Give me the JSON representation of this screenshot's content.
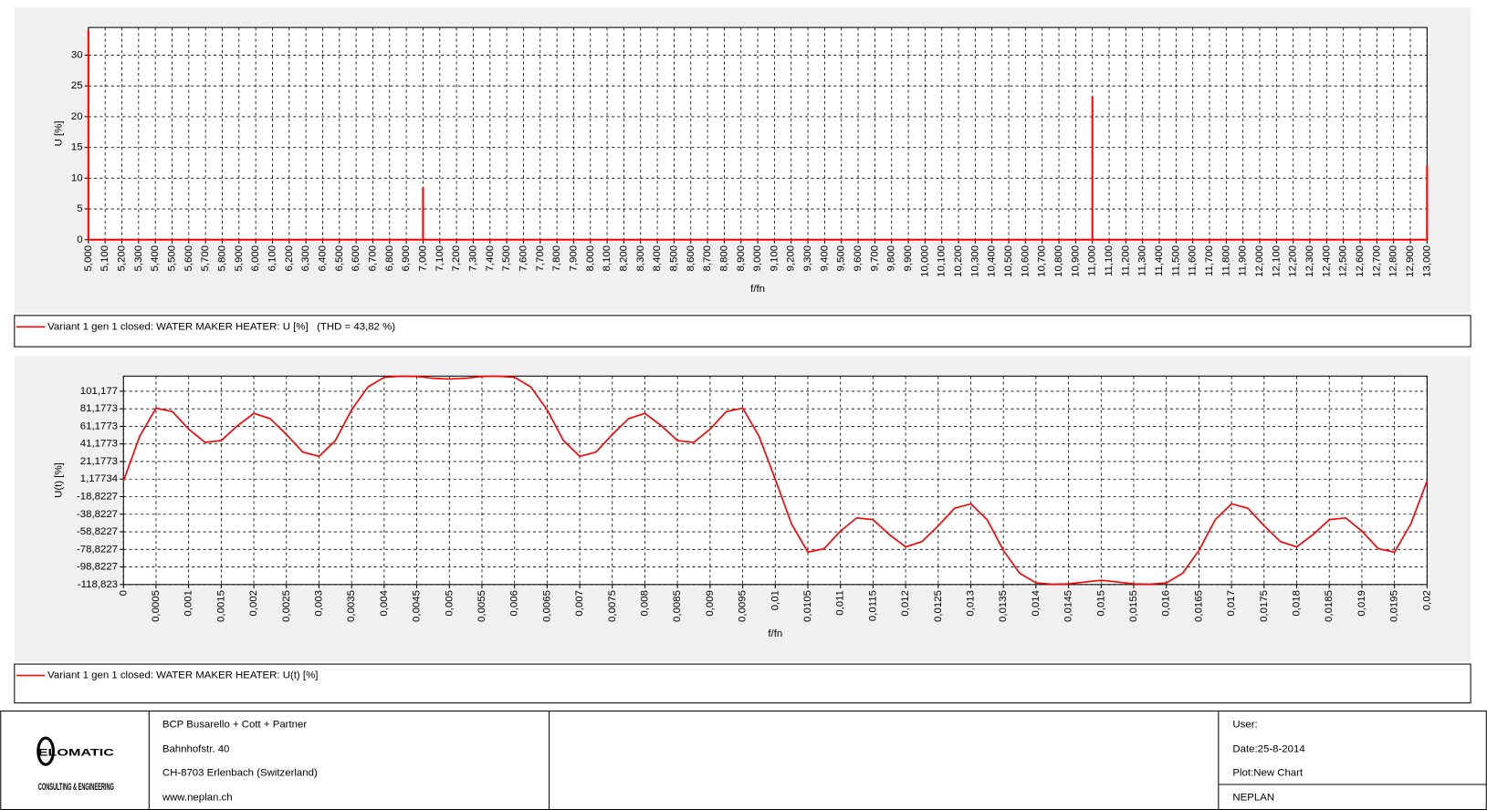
{
  "chart_data": [
    {
      "type": "bar",
      "x_label": "f/fn",
      "y_label": "U [%]",
      "x": [
        5,
        7,
        11,
        13
      ],
      "series": [
        {
          "name": "Variant 1 gen 1 closed: WATER MAKER HEATER: U [%]   (THD = 43,82 %)",
          "color": "#ff0000",
          "values": [
            34,
            8.5,
            23.3,
            12
          ]
        }
      ],
      "xlim": [
        5,
        13
      ],
      "ylim": [
        0,
        34.5
      ],
      "yticks": [
        0,
        5,
        10,
        15,
        20,
        25,
        30
      ],
      "grid": true,
      "xticks": [
        {
          "value": 5,
          "label": "5,000"
        },
        {
          "value": 5.1,
          "label": "5,100"
        },
        {
          "value": 5.2,
          "label": "5,200"
        },
        {
          "value": 5.3,
          "label": "5,300"
        },
        {
          "value": 5.4,
          "label": "5,400"
        },
        {
          "value": 5.5,
          "label": "5,500"
        },
        {
          "value": 5.6,
          "label": "5,600"
        },
        {
          "value": 5.7,
          "label": "5,700"
        },
        {
          "value": 5.8,
          "label": "5,800"
        },
        {
          "value": 5.9,
          "label": "5,900"
        },
        {
          "value": 6,
          "label": "6,000"
        },
        {
          "value": 6.1,
          "label": "6,100"
        },
        {
          "value": 6.2,
          "label": "6,200"
        },
        {
          "value": 6.3,
          "label": "6,300"
        },
        {
          "value": 6.4,
          "label": "6,400"
        },
        {
          "value": 6.5,
          "label": "6,500"
        },
        {
          "value": 6.6,
          "label": "6,600"
        },
        {
          "value": 6.7,
          "label": "6,700"
        },
        {
          "value": 6.8,
          "label": "6,800"
        },
        {
          "value": 6.9,
          "label": "6,900"
        },
        {
          "value": 7,
          "label": "7,000"
        },
        {
          "value": 7.1,
          "label": "7,100"
        },
        {
          "value": 7.2,
          "label": "7,200"
        },
        {
          "value": 7.3,
          "label": "7,300"
        },
        {
          "value": 7.4,
          "label": "7,400"
        },
        {
          "value": 7.5,
          "label": "7,500"
        },
        {
          "value": 7.6,
          "label": "7,600"
        },
        {
          "value": 7.7,
          "label": "7,700"
        },
        {
          "value": 7.8,
          "label": "7,800"
        },
        {
          "value": 7.9,
          "label": "7,900"
        },
        {
          "value": 8,
          "label": "8,000"
        },
        {
          "value": 8.1,
          "label": "8,100"
        },
        {
          "value": 8.2,
          "label": "8,200"
        },
        {
          "value": 8.3,
          "label": "8,300"
        },
        {
          "value": 8.4,
          "label": "8,400"
        },
        {
          "value": 8.5,
          "label": "8,500"
        },
        {
          "value": 8.6,
          "label": "8,600"
        },
        {
          "value": 8.7,
          "label": "8,700"
        },
        {
          "value": 8.8,
          "label": "8,800"
        },
        {
          "value": 8.9,
          "label": "8,900"
        },
        {
          "value": 9,
          "label": "9,000"
        },
        {
          "value": 9.1,
          "label": "9,100"
        },
        {
          "value": 9.2,
          "label": "9,200"
        },
        {
          "value": 9.3,
          "label": "9,300"
        },
        {
          "value": 9.4,
          "label": "9,400"
        },
        {
          "value": 9.5,
          "label": "9,500"
        },
        {
          "value": 9.6,
          "label": "9,600"
        },
        {
          "value": 9.7,
          "label": "9,700"
        },
        {
          "value": 9.8,
          "label": "9,800"
        },
        {
          "value": 9.9,
          "label": "9,900"
        },
        {
          "value": 10,
          "label": "10,000"
        },
        {
          "value": 10.1,
          "label": "10,100"
        },
        {
          "value": 10.2,
          "label": "10,200"
        },
        {
          "value": 10.3,
          "label": "10,300"
        },
        {
          "value": 10.4,
          "label": "10,400"
        },
        {
          "value": 10.5,
          "label": "10,500"
        },
        {
          "value": 10.6,
          "label": "10,600"
        },
        {
          "value": 10.7,
          "label": "10,700"
        },
        {
          "value": 10.8,
          "label": "10,800"
        },
        {
          "value": 10.9,
          "label": "10,900"
        },
        {
          "value": 11,
          "label": "11,000"
        },
        {
          "value": 11.1,
          "label": "11,100"
        },
        {
          "value": 11.2,
          "label": "11,200"
        },
        {
          "value": 11.3,
          "label": "11,300"
        },
        {
          "value": 11.4,
          "label": "11,400"
        },
        {
          "value": 11.5,
          "label": "11,500"
        },
        {
          "value": 11.6,
          "label": "11,600"
        },
        {
          "value": 11.7,
          "label": "11,700"
        },
        {
          "value": 11.8,
          "label": "11,800"
        },
        {
          "value": 11.9,
          "label": "11,900"
        },
        {
          "value": 12,
          "label": "12,000"
        },
        {
          "value": 12.1,
          "label": "12,100"
        },
        {
          "value": 12.2,
          "label": "12,200"
        },
        {
          "value": 12.3,
          "label": "12,300"
        },
        {
          "value": 12.4,
          "label": "12,400"
        },
        {
          "value": 12.5,
          "label": "12,500"
        },
        {
          "value": 12.6,
          "label": "12,600"
        },
        {
          "value": 12.7,
          "label": "12,700"
        },
        {
          "value": 12.8,
          "label": "12,800"
        },
        {
          "value": 12.9,
          "label": "12,900"
        },
        {
          "value": 13,
          "label": "13,000"
        }
      ]
    },
    {
      "type": "line",
      "x_label": "f/fn",
      "y_label": "U(t) [%]",
      "x": [
        0,
        0.00025,
        0.0005,
        0.00075,
        0.001,
        0.00125,
        0.0015,
        0.00175,
        0.002,
        0.00225,
        0.0025,
        0.00275,
        0.003,
        0.00325,
        0.0035,
        0.00375,
        0.004,
        0.00425,
        0.0045,
        0.00475,
        0.005,
        0.00525,
        0.0055,
        0.00575,
        0.006,
        0.00625,
        0.0065,
        0.00675,
        0.007,
        0.00725,
        0.0075,
        0.00775,
        0.008,
        0.00825,
        0.0085,
        0.00875,
        0.009,
        0.00925,
        0.0095,
        0.00975,
        0.01,
        0.01025,
        0.0105,
        0.01075,
        0.011,
        0.01125,
        0.0115,
        0.01175,
        0.012,
        0.01225,
        0.0125,
        0.01275,
        0.013,
        0.01325,
        0.0135,
        0.01375,
        0.014,
        0.01425,
        0.0145,
        0.01475,
        0.015,
        0.01525,
        0.0155,
        0.01575,
        0.016,
        0.01625,
        0.0165,
        0.01675,
        0.017,
        0.01725,
        0.0175,
        0.01775,
        0.018,
        0.01825,
        0.0185,
        0.01875,
        0.019,
        0.01925,
        0.0195,
        0.01975,
        0.02
      ],
      "series": [
        {
          "name": "Variant 1 gen 1 closed: WATER MAKER HEATER: U(t) [%]",
          "color": "#ff0000",
          "values": [
            -1,
            50,
            82,
            78,
            58,
            43,
            45,
            62,
            76,
            70,
            52,
            32,
            27,
            45,
            80,
            106,
            117,
            118.3,
            118,
            116,
            115,
            116,
            118,
            118.3,
            117,
            106,
            80,
            45,
            27,
            32,
            52,
            70,
            76,
            62,
            45,
            43,
            58,
            78,
            82,
            50,
            1,
            -50,
            -82,
            -78,
            -58,
            -43,
            -45,
            -62,
            -76,
            -70,
            -52,
            -32,
            -27,
            -45,
            -80,
            -106,
            -117,
            -118.5,
            -118,
            -116,
            -114,
            -116,
            -118,
            -118.5,
            -117,
            -106,
            -80,
            -45,
            -27,
            -32,
            -52,
            -70,
            -76,
            -62,
            -45,
            -43,
            -58,
            -78,
            -82,
            -50,
            -1
          ]
        }
      ],
      "xlim": [
        0,
        0.02
      ],
      "ylim": [
        -118.823,
        118.4
      ],
      "grid": true,
      "yticks": [
        {
          "value": 101.177,
          "label": "101,177"
        },
        {
          "value": 81.1773,
          "label": "81,1773"
        },
        {
          "value": 61.1773,
          "label": "61,1773"
        },
        {
          "value": 41.1773,
          "label": "41,1773"
        },
        {
          "value": 21.1773,
          "label": "21,1773"
        },
        {
          "value": 1.17734,
          "label": "1,17734"
        },
        {
          "value": -18.8227,
          "label": "-18,8227"
        },
        {
          "value": -38.8227,
          "label": "-38,8227"
        },
        {
          "value": -58.8227,
          "label": "-58,8227"
        },
        {
          "value": -78.8227,
          "label": "-78,8227"
        },
        {
          "value": -98.8227,
          "label": "-98,8227"
        },
        {
          "value": -118.823,
          "label": "-118,823"
        }
      ],
      "xticks": [
        0,
        {
          "value": 0.0005,
          "label": "0,0005"
        },
        {
          "value": 0.001,
          "label": "0,001"
        },
        {
          "value": 0.0015,
          "label": "0,0015"
        },
        {
          "value": 0.002,
          "label": "0,002"
        },
        {
          "value": 0.0025,
          "label": "0,0025"
        },
        {
          "value": 0.003,
          "label": "0,003"
        },
        {
          "value": 0.0035,
          "label": "0,0035"
        },
        {
          "value": 0.004,
          "label": "0,004"
        },
        {
          "value": 0.0045,
          "label": "0,0045"
        },
        {
          "value": 0.005,
          "label": "0,005"
        },
        {
          "value": 0.0055,
          "label": "0,0055"
        },
        {
          "value": 0.006,
          "label": "0,006"
        },
        {
          "value": 0.0065,
          "label": "0,0065"
        },
        {
          "value": 0.007,
          "label": "0,007"
        },
        {
          "value": 0.0075,
          "label": "0,0075"
        },
        {
          "value": 0.008,
          "label": "0,008"
        },
        {
          "value": 0.0085,
          "label": "0,0085"
        },
        {
          "value": 0.009,
          "label": "0,009"
        },
        {
          "value": 0.0095,
          "label": "0,0095"
        },
        {
          "value": 0.01,
          "label": "0,01"
        },
        {
          "value": 0.0105,
          "label": "0,0105"
        },
        {
          "value": 0.011,
          "label": "0,011"
        },
        {
          "value": 0.0115,
          "label": "0,0115"
        },
        {
          "value": 0.012,
          "label": "0,012"
        },
        {
          "value": 0.0125,
          "label": "0,0125"
        },
        {
          "value": 0.013,
          "label": "0,013"
        },
        {
          "value": 0.0135,
          "label": "0,0135"
        },
        {
          "value": 0.014,
          "label": "0,014"
        },
        {
          "value": 0.0145,
          "label": "0,0145"
        },
        {
          "value": 0.015,
          "label": "0,015"
        },
        {
          "value": 0.0155,
          "label": "0,0155"
        },
        {
          "value": 0.016,
          "label": "0,016"
        },
        {
          "value": 0.0165,
          "label": "0,0165"
        },
        {
          "value": 0.017,
          "label": "0,017"
        },
        {
          "value": 0.0175,
          "label": "0,0175"
        },
        {
          "value": 0.018,
          "label": "0,018"
        },
        {
          "value": 0.0185,
          "label": "0,0185"
        },
        {
          "value": 0.019,
          "label": "0,019"
        },
        {
          "value": 0.0195,
          "label": "0,0195"
        },
        {
          "value": 0.02,
          "label": "0,02"
        }
      ]
    }
  ],
  "footer": {
    "logo": {
      "name": "ELOMATIC",
      "tagline": "CONSULTING & ENGINEERING"
    },
    "company": [
      "BCP Busarello + Cott + Partner",
      "Bahnhofstr. 40",
      "CH-8703 Erlenbach (Switzerland)",
      "www.neplan.ch"
    ],
    "info": [
      "User:",
      "Date:25-8-2014",
      "Plot:New Chart",
      "NEPLAN"
    ]
  }
}
